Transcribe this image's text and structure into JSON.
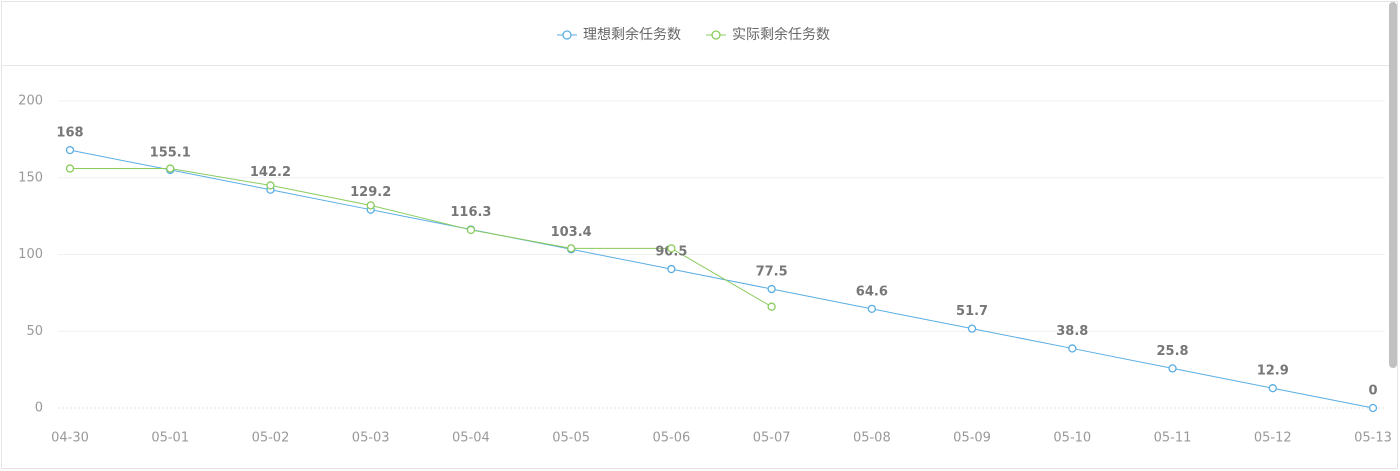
{
  "chart_data": {
    "type": "line",
    "categories": [
      "04-30",
      "05-01",
      "05-02",
      "05-03",
      "05-04",
      "05-05",
      "05-06",
      "05-07",
      "05-08",
      "05-09",
      "05-10",
      "05-11",
      "05-12",
      "05-13"
    ],
    "series": [
      {
        "name": "理想剩余任务数",
        "color": "#5aaee3",
        "values": [
          168,
          155.1,
          142.2,
          129.2,
          116.3,
          103.4,
          90.5,
          77.5,
          64.6,
          51.7,
          38.8,
          25.8,
          12.9,
          0
        ]
      },
      {
        "name": "实际剩余任务数",
        "color": "#8acb5c",
        "values": [
          156,
          156,
          145,
          132,
          116,
          104,
          104,
          66,
          null,
          null,
          null,
          null,
          null,
          null
        ]
      }
    ],
    "ylim": [
      0,
      200
    ],
    "yticks": [
      0,
      50,
      100,
      150,
      200
    ],
    "grid": true
  }
}
